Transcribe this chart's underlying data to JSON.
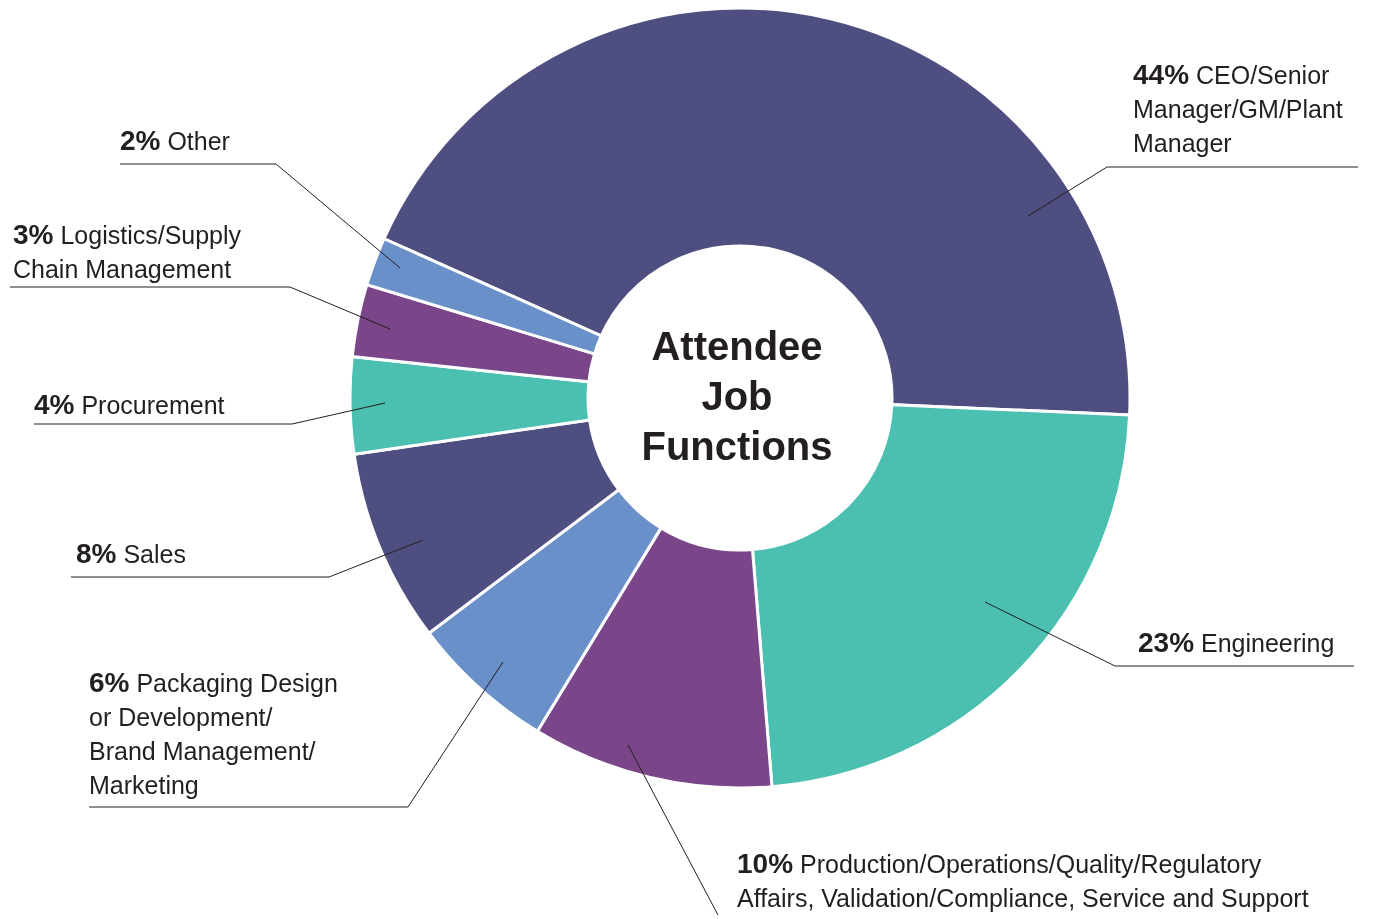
{
  "chart_data": {
    "type": "donut",
    "title": "Attendee Job Functions",
    "categories": [
      "CEO/Senior Manager/GM/Plant Manager",
      "Engineering",
      "Production/Operations/Quality/Regulatory Affairs, Validation/Compliance, Service and Support",
      "Packaging Design or Development/ Brand Management/ Marketing",
      "Sales",
      "Procurement",
      "Logistics/Supply Chain Management",
      "Other"
    ],
    "values": [
      44,
      23,
      10,
      6,
      8,
      4,
      3,
      2
    ],
    "value_labels": [
      "44%",
      "23%",
      "10%",
      "6%",
      "8%",
      "4%",
      "3%",
      "2%"
    ],
    "colors": [
      "#4e4f80",
      "#4bbfb0",
      "#7b4589",
      "#6990c9",
      "#4e4f80",
      "#4bbfb0",
      "#7b4589",
      "#6990c9"
    ]
  }
}
